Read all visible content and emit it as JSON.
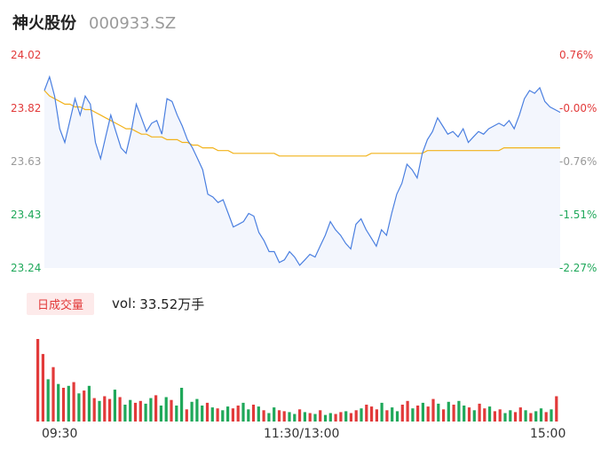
{
  "header": {
    "name": "神火股份",
    "code": "000933.SZ"
  },
  "colors": {
    "price_line": "#4a7fe0",
    "avg_line": "#f2b21a",
    "up": "#e23a3a",
    "down": "#1fa85a",
    "neutral": "#999999",
    "area_fill": "#f3f6fd"
  },
  "chart_data": {
    "type": "line",
    "prev_close": 23.82,
    "y_ticks": [
      "24.02",
      "23.82",
      "23.63",
      "23.43",
      "23.24"
    ],
    "pct_ticks": [
      "0.76%",
      "-0.00%",
      "-0.76%",
      "-1.51%",
      "-2.27%"
    ],
    "ylim": [
      23.24,
      24.02
    ],
    "x_ticks": [
      "09:30",
      "11:30/13:00",
      "15:00"
    ],
    "price": [
      23.89,
      23.94,
      23.87,
      23.75,
      23.7,
      23.78,
      23.86,
      23.8,
      23.87,
      23.84,
      23.7,
      23.64,
      23.72,
      23.8,
      23.74,
      23.68,
      23.66,
      23.74,
      23.84,
      23.79,
      23.74,
      23.77,
      23.78,
      23.73,
      23.86,
      23.85,
      23.8,
      23.76,
      23.71,
      23.68,
      23.64,
      23.6,
      23.51,
      23.5,
      23.48,
      23.49,
      23.44,
      23.39,
      23.4,
      23.41,
      23.44,
      23.43,
      23.37,
      23.34,
      23.3,
      23.3,
      23.26,
      23.27,
      23.3,
      23.28,
      23.25,
      23.27,
      23.29,
      23.28,
      23.32,
      23.36,
      23.41,
      23.38,
      23.36,
      23.33,
      23.31,
      23.4,
      23.42,
      23.38,
      23.35,
      23.32,
      23.38,
      23.36,
      23.44,
      23.51,
      23.55,
      23.62,
      23.6,
      23.57,
      23.66,
      23.71,
      23.74,
      23.79,
      23.76,
      23.73,
      23.74,
      23.72,
      23.75,
      23.7,
      23.72,
      23.74,
      23.73,
      23.75,
      23.76,
      23.77,
      23.76,
      23.78,
      23.75,
      23.8,
      23.86,
      23.89,
      23.88,
      23.9,
      23.85,
      23.83,
      23.82,
      23.81
    ],
    "avg": [
      23.89,
      23.87,
      23.86,
      23.85,
      23.84,
      23.84,
      23.83,
      23.83,
      23.82,
      23.82,
      23.81,
      23.8,
      23.79,
      23.78,
      23.77,
      23.76,
      23.75,
      23.75,
      23.74,
      23.73,
      23.73,
      23.72,
      23.72,
      23.72,
      23.71,
      23.71,
      23.71,
      23.7,
      23.7,
      23.69,
      23.69,
      23.68,
      23.68,
      23.68,
      23.67,
      23.67,
      23.67,
      23.66,
      23.66,
      23.66,
      23.66,
      23.66,
      23.66,
      23.66,
      23.66,
      23.66,
      23.65,
      23.65,
      23.65,
      23.65,
      23.65,
      23.65,
      23.65,
      23.65,
      23.65,
      23.65,
      23.65,
      23.65,
      23.65,
      23.65,
      23.65,
      23.65,
      23.65,
      23.65,
      23.66,
      23.66,
      23.66,
      23.66,
      23.66,
      23.66,
      23.66,
      23.66,
      23.66,
      23.66,
      23.66,
      23.67,
      23.67,
      23.67,
      23.67,
      23.67,
      23.67,
      23.67,
      23.67,
      23.67,
      23.67,
      23.67,
      23.67,
      23.67,
      23.67,
      23.67,
      23.68,
      23.68,
      23.68,
      23.68,
      23.68,
      23.68,
      23.68,
      23.68,
      23.68,
      23.68,
      23.68,
      23.68
    ],
    "volume": [
      88,
      72,
      45,
      58,
      40,
      36,
      38,
      42,
      30,
      33,
      38,
      25,
      22,
      27,
      24,
      34,
      26,
      18,
      23,
      20,
      22,
      19,
      25,
      28,
      17,
      26,
      23,
      17,
      36,
      13,
      21,
      24,
      17,
      20,
      15,
      14,
      12,
      16,
      14,
      17,
      20,
      13,
      18,
      16,
      12,
      9,
      15,
      12,
      11,
      10,
      8,
      13,
      10,
      9,
      8,
      12,
      7,
      9,
      8,
      10,
      11,
      9,
      12,
      14,
      18,
      16,
      13,
      20,
      12,
      15,
      11,
      18,
      22,
      14,
      17,
      20,
      16,
      24,
      19,
      13,
      21,
      18,
      22,
      17,
      15,
      12,
      19,
      14,
      16,
      11,
      13,
      9,
      12,
      10,
      15,
      12,
      9,
      11,
      14,
      10,
      13,
      27
    ],
    "volume_up": [
      true,
      true,
      false,
      true,
      false,
      true,
      false,
      true,
      false,
      true,
      false,
      true,
      false,
      true,
      true,
      false,
      true,
      false,
      false,
      true,
      true,
      false,
      false,
      true,
      false,
      false,
      true,
      false,
      false,
      true,
      false,
      false,
      false,
      true,
      false,
      true,
      false,
      false,
      true,
      true,
      false,
      false,
      true,
      false,
      true,
      false,
      false,
      true,
      true,
      false,
      false,
      true,
      false,
      true,
      false,
      true,
      false,
      false,
      true,
      true,
      false,
      true,
      true,
      false,
      true,
      true,
      true,
      false,
      true,
      false,
      false,
      true,
      true,
      false,
      true,
      false,
      true,
      true,
      false,
      true,
      false,
      true,
      false,
      false,
      true,
      false,
      true,
      true,
      false,
      true,
      true,
      false,
      false,
      true,
      true,
      false,
      true,
      false,
      false,
      true,
      false,
      true
    ]
  },
  "volume_panel": {
    "badge": "日成交量",
    "label": "vol:",
    "value": "33.52万手"
  }
}
